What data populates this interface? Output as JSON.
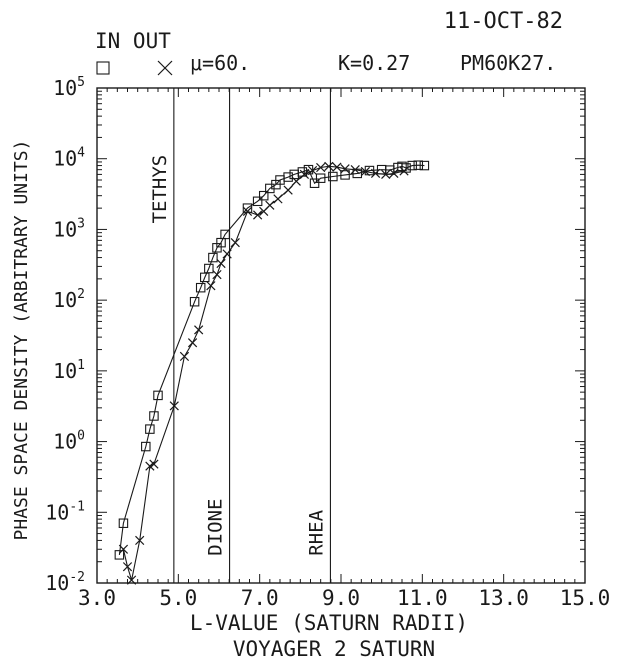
{
  "header": {
    "date": "11-OCT-82",
    "legend_label": "IN OUT",
    "mu_label": "μ=60.",
    "k_label": "K=0.27",
    "run_label": "PM60K27."
  },
  "chart_data": {
    "type": "scatter",
    "xlabel": "L-VALUE (SATURN RADII)",
    "ylabel": "PHASE SPACE DENSITY (ARBITRARY UNITS)",
    "subtitle": "VOYAGER 2 SATURN",
    "xlim": [
      3.0,
      15.0
    ],
    "ylim": [
      0.01,
      100000
    ],
    "yscale": "log",
    "x_tick_labels": [
      "3.0",
      "5.0",
      "7.0",
      "9.0",
      "11.0",
      "13.0",
      "15.0"
    ],
    "x_ticks": [
      3,
      5,
      7,
      9,
      11,
      13,
      15
    ],
    "y_ticks": [
      {
        "base": "10",
        "exp": "5",
        "value": 100000
      },
      {
        "base": "10",
        "exp": "4",
        "value": 10000
      },
      {
        "base": "10",
        "exp": "3",
        "value": 1000
      },
      {
        "base": "10",
        "exp": "2",
        "value": 100
      },
      {
        "base": "10",
        "exp": "1",
        "value": 10
      },
      {
        "base": "10",
        "exp": "0",
        "value": 1
      },
      {
        "base": "10",
        "exp": "-1",
        "value": 0.1
      },
      {
        "base": "10",
        "exp": "-2",
        "value": 0.01
      }
    ],
    "moons": [
      {
        "name": "TETHYS",
        "L": 4.89
      },
      {
        "name": "DIONE",
        "L": 6.26
      },
      {
        "name": "RHEA",
        "L": 8.74
      }
    ],
    "series": [
      {
        "name": "IN",
        "marker": "square",
        "points": [
          [
            3.55,
            0.025
          ],
          [
            3.65,
            0.07
          ],
          [
            4.2,
            0.85
          ],
          [
            4.3,
            1.5
          ],
          [
            4.4,
            2.3
          ],
          [
            4.5,
            4.5
          ],
          [
            5.4,
            95
          ],
          [
            5.55,
            150
          ],
          [
            5.65,
            210
          ],
          [
            5.75,
            280
          ],
          [
            5.85,
            400
          ],
          [
            5.95,
            550
          ],
          [
            6.05,
            650
          ],
          [
            6.15,
            850
          ],
          [
            6.7,
            2000
          ],
          [
            6.95,
            2500
          ],
          [
            7.1,
            3000
          ],
          [
            7.25,
            3800
          ],
          [
            7.4,
            4300
          ],
          [
            7.5,
            5000
          ],
          [
            7.7,
            5500
          ],
          [
            7.85,
            6000
          ],
          [
            8.05,
            6500
          ],
          [
            8.2,
            7000
          ],
          [
            8.35,
            4500
          ],
          [
            8.5,
            5300
          ],
          [
            8.8,
            5600
          ],
          [
            9.1,
            5900
          ],
          [
            9.4,
            6200
          ],
          [
            9.7,
            6800
          ],
          [
            10.0,
            7000
          ],
          [
            10.2,
            6900
          ],
          [
            10.4,
            7500
          ],
          [
            10.5,
            7800
          ],
          [
            10.6,
            7400
          ],
          [
            10.75,
            8000
          ],
          [
            10.9,
            8100
          ],
          [
            11.05,
            8000
          ]
        ]
      },
      {
        "name": "OUT",
        "marker": "cross",
        "points": [
          [
            3.65,
            0.03
          ],
          [
            3.75,
            0.017
          ],
          [
            3.85,
            0.011
          ],
          [
            4.05,
            0.04
          ],
          [
            4.3,
            0.45
          ],
          [
            4.4,
            0.48
          ],
          [
            4.9,
            3.2
          ],
          [
            5.15,
            16
          ],
          [
            5.35,
            25
          ],
          [
            5.5,
            38
          ],
          [
            5.8,
            160
          ],
          [
            5.95,
            230
          ],
          [
            6.05,
            330
          ],
          [
            6.2,
            450
          ],
          [
            6.4,
            650
          ],
          [
            6.7,
            1800
          ],
          [
            6.95,
            1600
          ],
          [
            7.1,
            1800
          ],
          [
            7.25,
            2200
          ],
          [
            7.45,
            2700
          ],
          [
            7.7,
            3600
          ],
          [
            7.9,
            4800
          ],
          [
            8.1,
            6000
          ],
          [
            8.3,
            6800
          ],
          [
            8.5,
            7500
          ],
          [
            8.7,
            7800
          ],
          [
            8.9,
            7600
          ],
          [
            9.1,
            7200
          ],
          [
            9.35,
            7000
          ],
          [
            9.6,
            6600
          ],
          [
            9.85,
            6200
          ],
          [
            10.1,
            6000
          ],
          [
            10.3,
            6200
          ],
          [
            10.55,
            6700
          ]
        ]
      }
    ]
  }
}
